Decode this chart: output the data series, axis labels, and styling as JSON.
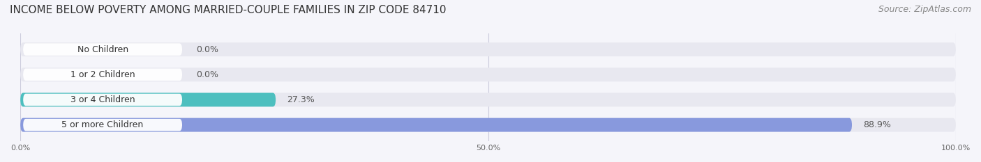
{
  "title": "INCOME BELOW POVERTY AMONG MARRIED-COUPLE FAMILIES IN ZIP CODE 84710",
  "source": "Source: ZipAtlas.com",
  "categories": [
    "No Children",
    "1 or 2 Children",
    "3 or 4 Children",
    "5 or more Children"
  ],
  "values": [
    0.0,
    0.0,
    27.3,
    88.9
  ],
  "bar_colors": [
    "#a8c4e0",
    "#c4a8c8",
    "#4dbfbf",
    "#8899dd"
  ],
  "bar_bg_color": "#e8e8f0",
  "label_bg_color": "#ffffff",
  "xlim": [
    0,
    100
  ],
  "xticks": [
    0,
    50,
    100
  ],
  "xticklabels": [
    "0.0%",
    "50.0%",
    "100.0%"
  ],
  "title_fontsize": 11,
  "source_fontsize": 9,
  "label_fontsize": 9,
  "value_fontsize": 9,
  "bar_height": 0.55,
  "bg_color": "#f5f5fa"
}
